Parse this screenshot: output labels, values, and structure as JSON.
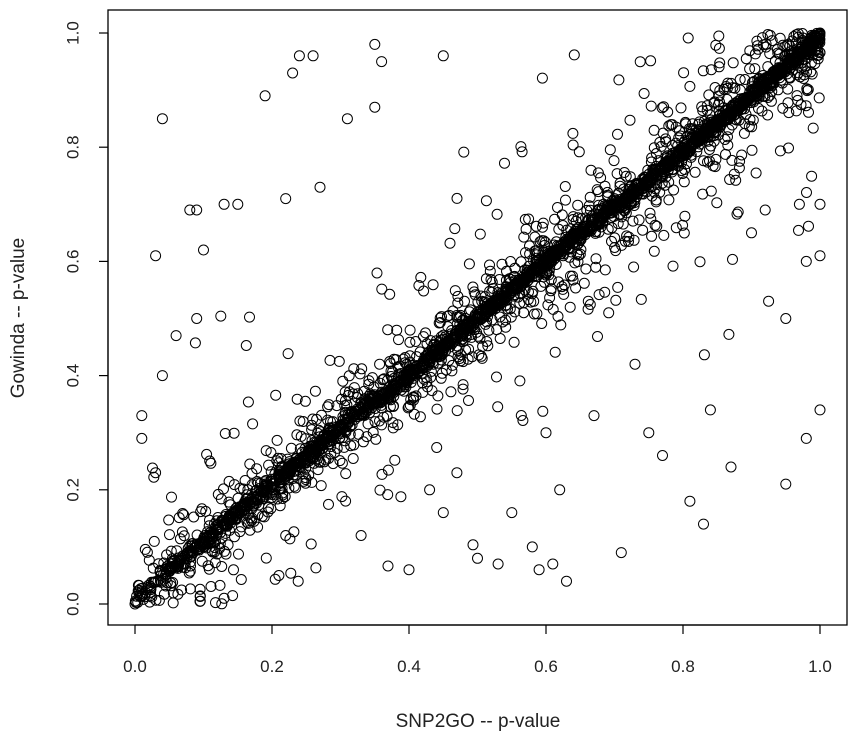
{
  "chart_data": {
    "type": "scatter",
    "title": "",
    "xlabel": "SNP2GO -- p-value",
    "ylabel": "Gowinda -- p-value",
    "xlim": [
      0,
      1
    ],
    "ylim": [
      0,
      1
    ],
    "xticks": [
      "0.0",
      "0.2",
      "0.4",
      "0.6",
      "0.8",
      "1.0"
    ],
    "yticks": [
      "0.0",
      "0.2",
      "0.4",
      "0.6",
      "0.8",
      "1.0"
    ],
    "grid": false,
    "legend": "none",
    "marker": "open-circle",
    "point_color": "#000000",
    "approx_point_count": 3000,
    "trend": "dense concentration along the diagonal y = x with scatter on both sides",
    "series": [
      {
        "points": [
          [
            0.04,
            0.85
          ],
          [
            0.09,
            0.69
          ],
          [
            0.08,
            0.69
          ],
          [
            0.24,
            0.96
          ],
          [
            0.26,
            0.96
          ],
          [
            0.23,
            0.93
          ],
          [
            0.19,
            0.89
          ],
          [
            0.31,
            0.85
          ],
          [
            0.35,
            0.87
          ],
          [
            0.35,
            0.98
          ],
          [
            0.36,
            0.95
          ],
          [
            0.45,
            0.96
          ],
          [
            0.03,
            0.61
          ],
          [
            0.1,
            0.62
          ],
          [
            0.13,
            0.7
          ],
          [
            0.15,
            0.7
          ],
          [
            0.22,
            0.71
          ],
          [
            0.27,
            0.73
          ],
          [
            0.01,
            0.33
          ],
          [
            0.04,
            0.4
          ],
          [
            0.01,
            0.29
          ],
          [
            0.03,
            0.23
          ],
          [
            0.06,
            0.47
          ],
          [
            0.09,
            0.5
          ],
          [
            0.13,
            0.01
          ],
          [
            0.4,
            0.06
          ],
          [
            0.5,
            0.08
          ],
          [
            0.53,
            0.07
          ],
          [
            0.59,
            0.06
          ],
          [
            0.61,
            0.07
          ],
          [
            0.63,
            0.04
          ],
          [
            0.58,
            0.1
          ],
          [
            0.62,
            0.2
          ],
          [
            0.6,
            0.3
          ],
          [
            0.83,
            0.14
          ],
          [
            0.81,
            0.18
          ],
          [
            0.87,
            0.24
          ],
          [
            0.95,
            0.21
          ],
          [
            0.98,
            0.29
          ],
          [
            1.0,
            0.34
          ],
          [
            0.84,
            0.34
          ],
          [
            0.75,
            0.3
          ],
          [
            0.77,
            0.26
          ],
          [
            0.95,
            0.5
          ],
          [
            0.98,
            0.6
          ],
          [
            1.0,
            0.61
          ],
          [
            1.0,
            0.7
          ],
          [
            0.97,
            0.7
          ],
          [
            0.92,
            0.69
          ],
          [
            0.9,
            0.65
          ],
          [
            0.73,
            0.42
          ],
          [
            0.67,
            0.33
          ],
          [
            0.71,
            0.09
          ],
          [
            0.55,
            0.16
          ],
          [
            0.47,
            0.23
          ],
          [
            0.45,
            0.16
          ],
          [
            0.43,
            0.2
          ],
          [
            0.33,
            0.12
          ],
          [
            0.22,
            0.12
          ],
          [
            0.21,
            0.05
          ],
          [
            0.4,
            0.41
          ],
          [
            0.5,
            0.5
          ],
          [
            0.6,
            0.6
          ],
          [
            0.7,
            0.71
          ],
          [
            0.8,
            0.8
          ],
          [
            0.9,
            0.9
          ],
          [
            0.95,
            0.96
          ],
          [
            1.0,
            1.0
          ],
          [
            0.2,
            0.2
          ],
          [
            0.1,
            0.1
          ],
          [
            0.3,
            0.31
          ],
          [
            0.0,
            0.0
          ]
        ]
      }
    ]
  }
}
